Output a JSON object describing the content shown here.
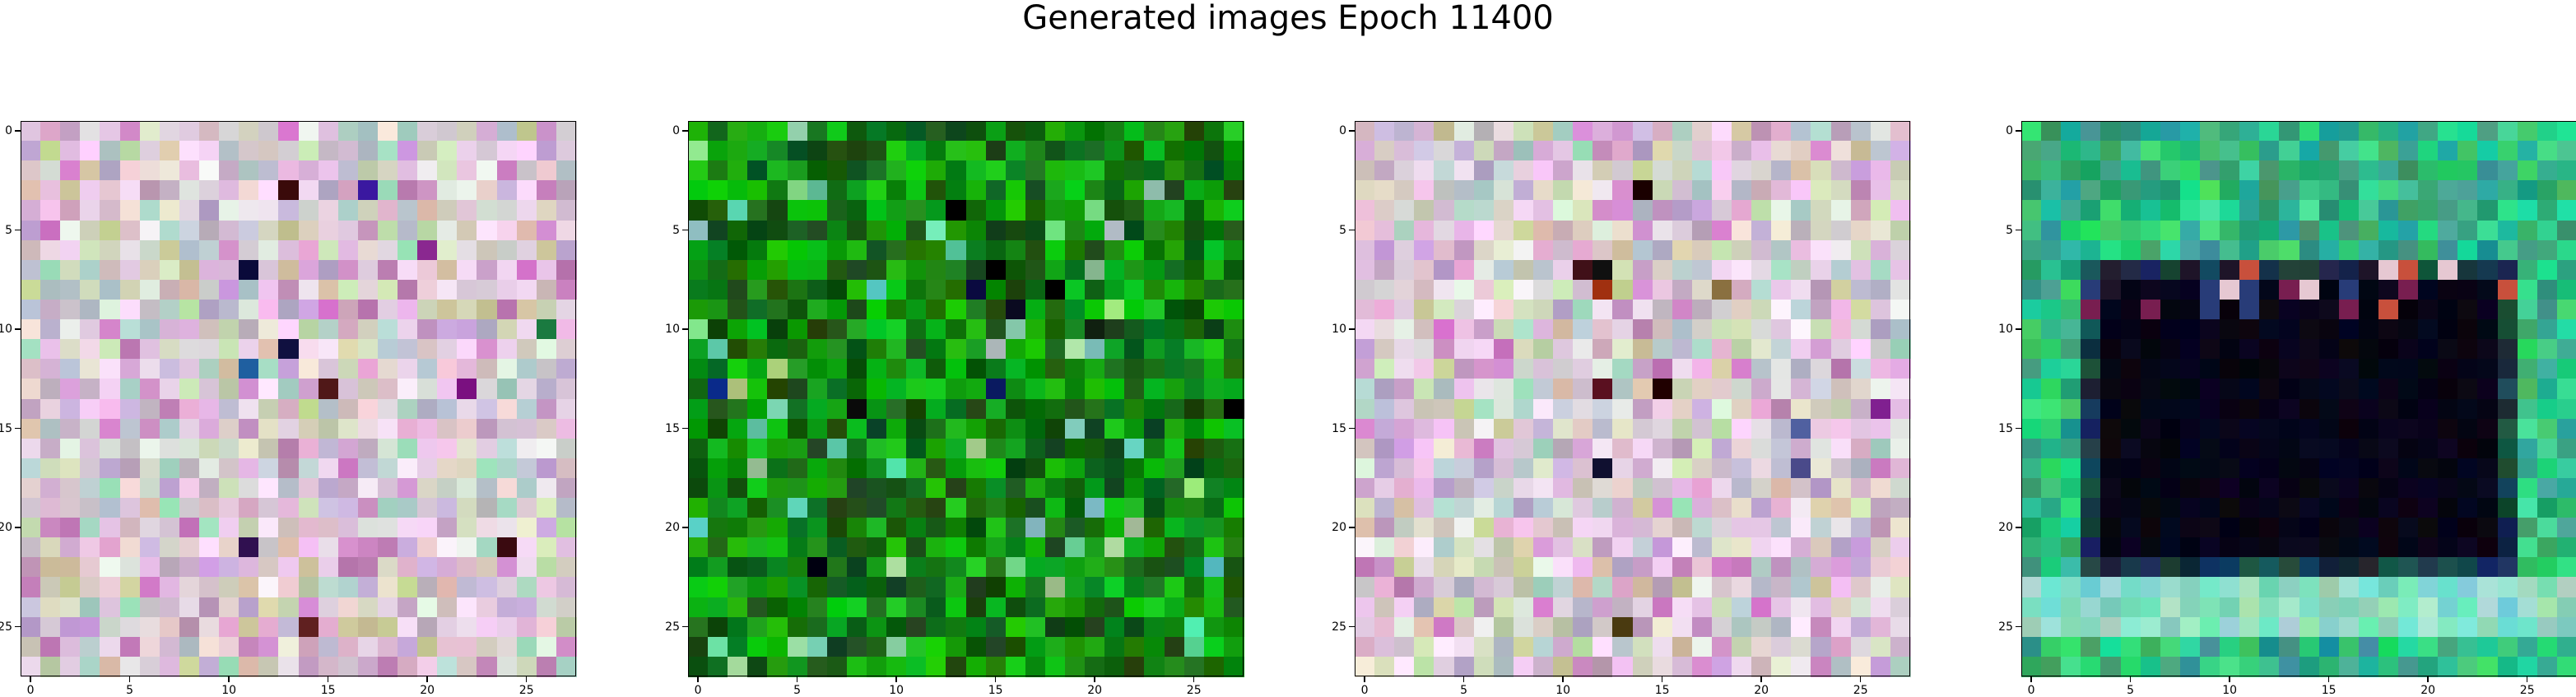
{
  "title": "Generated images Epoch 11400",
  "chart_data": {
    "type": "heatmap",
    "title": "Generated images Epoch 11400",
    "image_size": 28,
    "xticks": [
      0,
      5,
      10,
      15,
      20,
      25
    ],
    "yticks": [
      0,
      5,
      10,
      15,
      20,
      25
    ],
    "xticklabels": [
      "0",
      "5",
      "10",
      "15",
      "20",
      "25"
    ],
    "yticklabels": [
      "0",
      "5",
      "10",
      "15",
      "20",
      "25"
    ],
    "images": [
      {
        "style": "pastel-noise",
        "dark_spots": [
          [
            3,
            13,
            "#3a0a0a"
          ],
          [
            7,
            11,
            "#0a0a3a"
          ],
          [
            11,
            13,
            "#101040"
          ],
          [
            13,
            15,
            "#501818"
          ],
          [
            21,
            11,
            "#301050"
          ],
          [
            21,
            24,
            "#3a0a10"
          ],
          [
            25,
            14,
            "#602020"
          ],
          [
            12,
            11,
            "#1f5fa0"
          ],
          [
            13,
            22,
            "#7a1080"
          ],
          [
            6,
            20,
            "#8a2890"
          ],
          [
            10,
            26,
            "#1a7a40"
          ],
          [
            3,
            17,
            "#3a18a0"
          ]
        ]
      },
      {
        "style": "green-noise",
        "dark_spots": [
          [
            4,
            13,
            "#000000"
          ],
          [
            7,
            15,
            "#000000"
          ],
          [
            8,
            18,
            "#000000"
          ],
          [
            8,
            14,
            "#0a0a40"
          ],
          [
            13,
            1,
            "#0a2a8a"
          ],
          [
            13,
            15,
            "#0a1a60"
          ],
          [
            14,
            27,
            "#000000"
          ],
          [
            22,
            6,
            "#000010"
          ],
          [
            14,
            8,
            "#0a0a0a"
          ],
          [
            9,
            16,
            "#0a0a20"
          ],
          [
            10,
            20,
            "#102010"
          ]
        ]
      },
      {
        "style": "pastel-noise",
        "dark_spots": [
          [
            3,
            14,
            "#1a0000"
          ],
          [
            7,
            11,
            "#401018"
          ],
          [
            7,
            12,
            "#101010"
          ],
          [
            8,
            12,
            "#a03010"
          ],
          [
            8,
            18,
            "#8a7040"
          ],
          [
            13,
            15,
            "#200000"
          ],
          [
            13,
            12,
            "#5a1020"
          ],
          [
            17,
            12,
            "#101030"
          ],
          [
            17,
            22,
            "#4a4a8a"
          ],
          [
            25,
            13,
            "#4a3a10"
          ],
          [
            15,
            22,
            "#5060a0"
          ],
          [
            14,
            26,
            "#802090"
          ]
        ]
      },
      {
        "style": "green-frame-dark-center",
        "dark_box": {
          "row0": 7,
          "row1": 22,
          "col0": 3,
          "col1": 24
        },
        "bright_band": {
          "row0": 23,
          "row1": 25
        }
      }
    ]
  }
}
